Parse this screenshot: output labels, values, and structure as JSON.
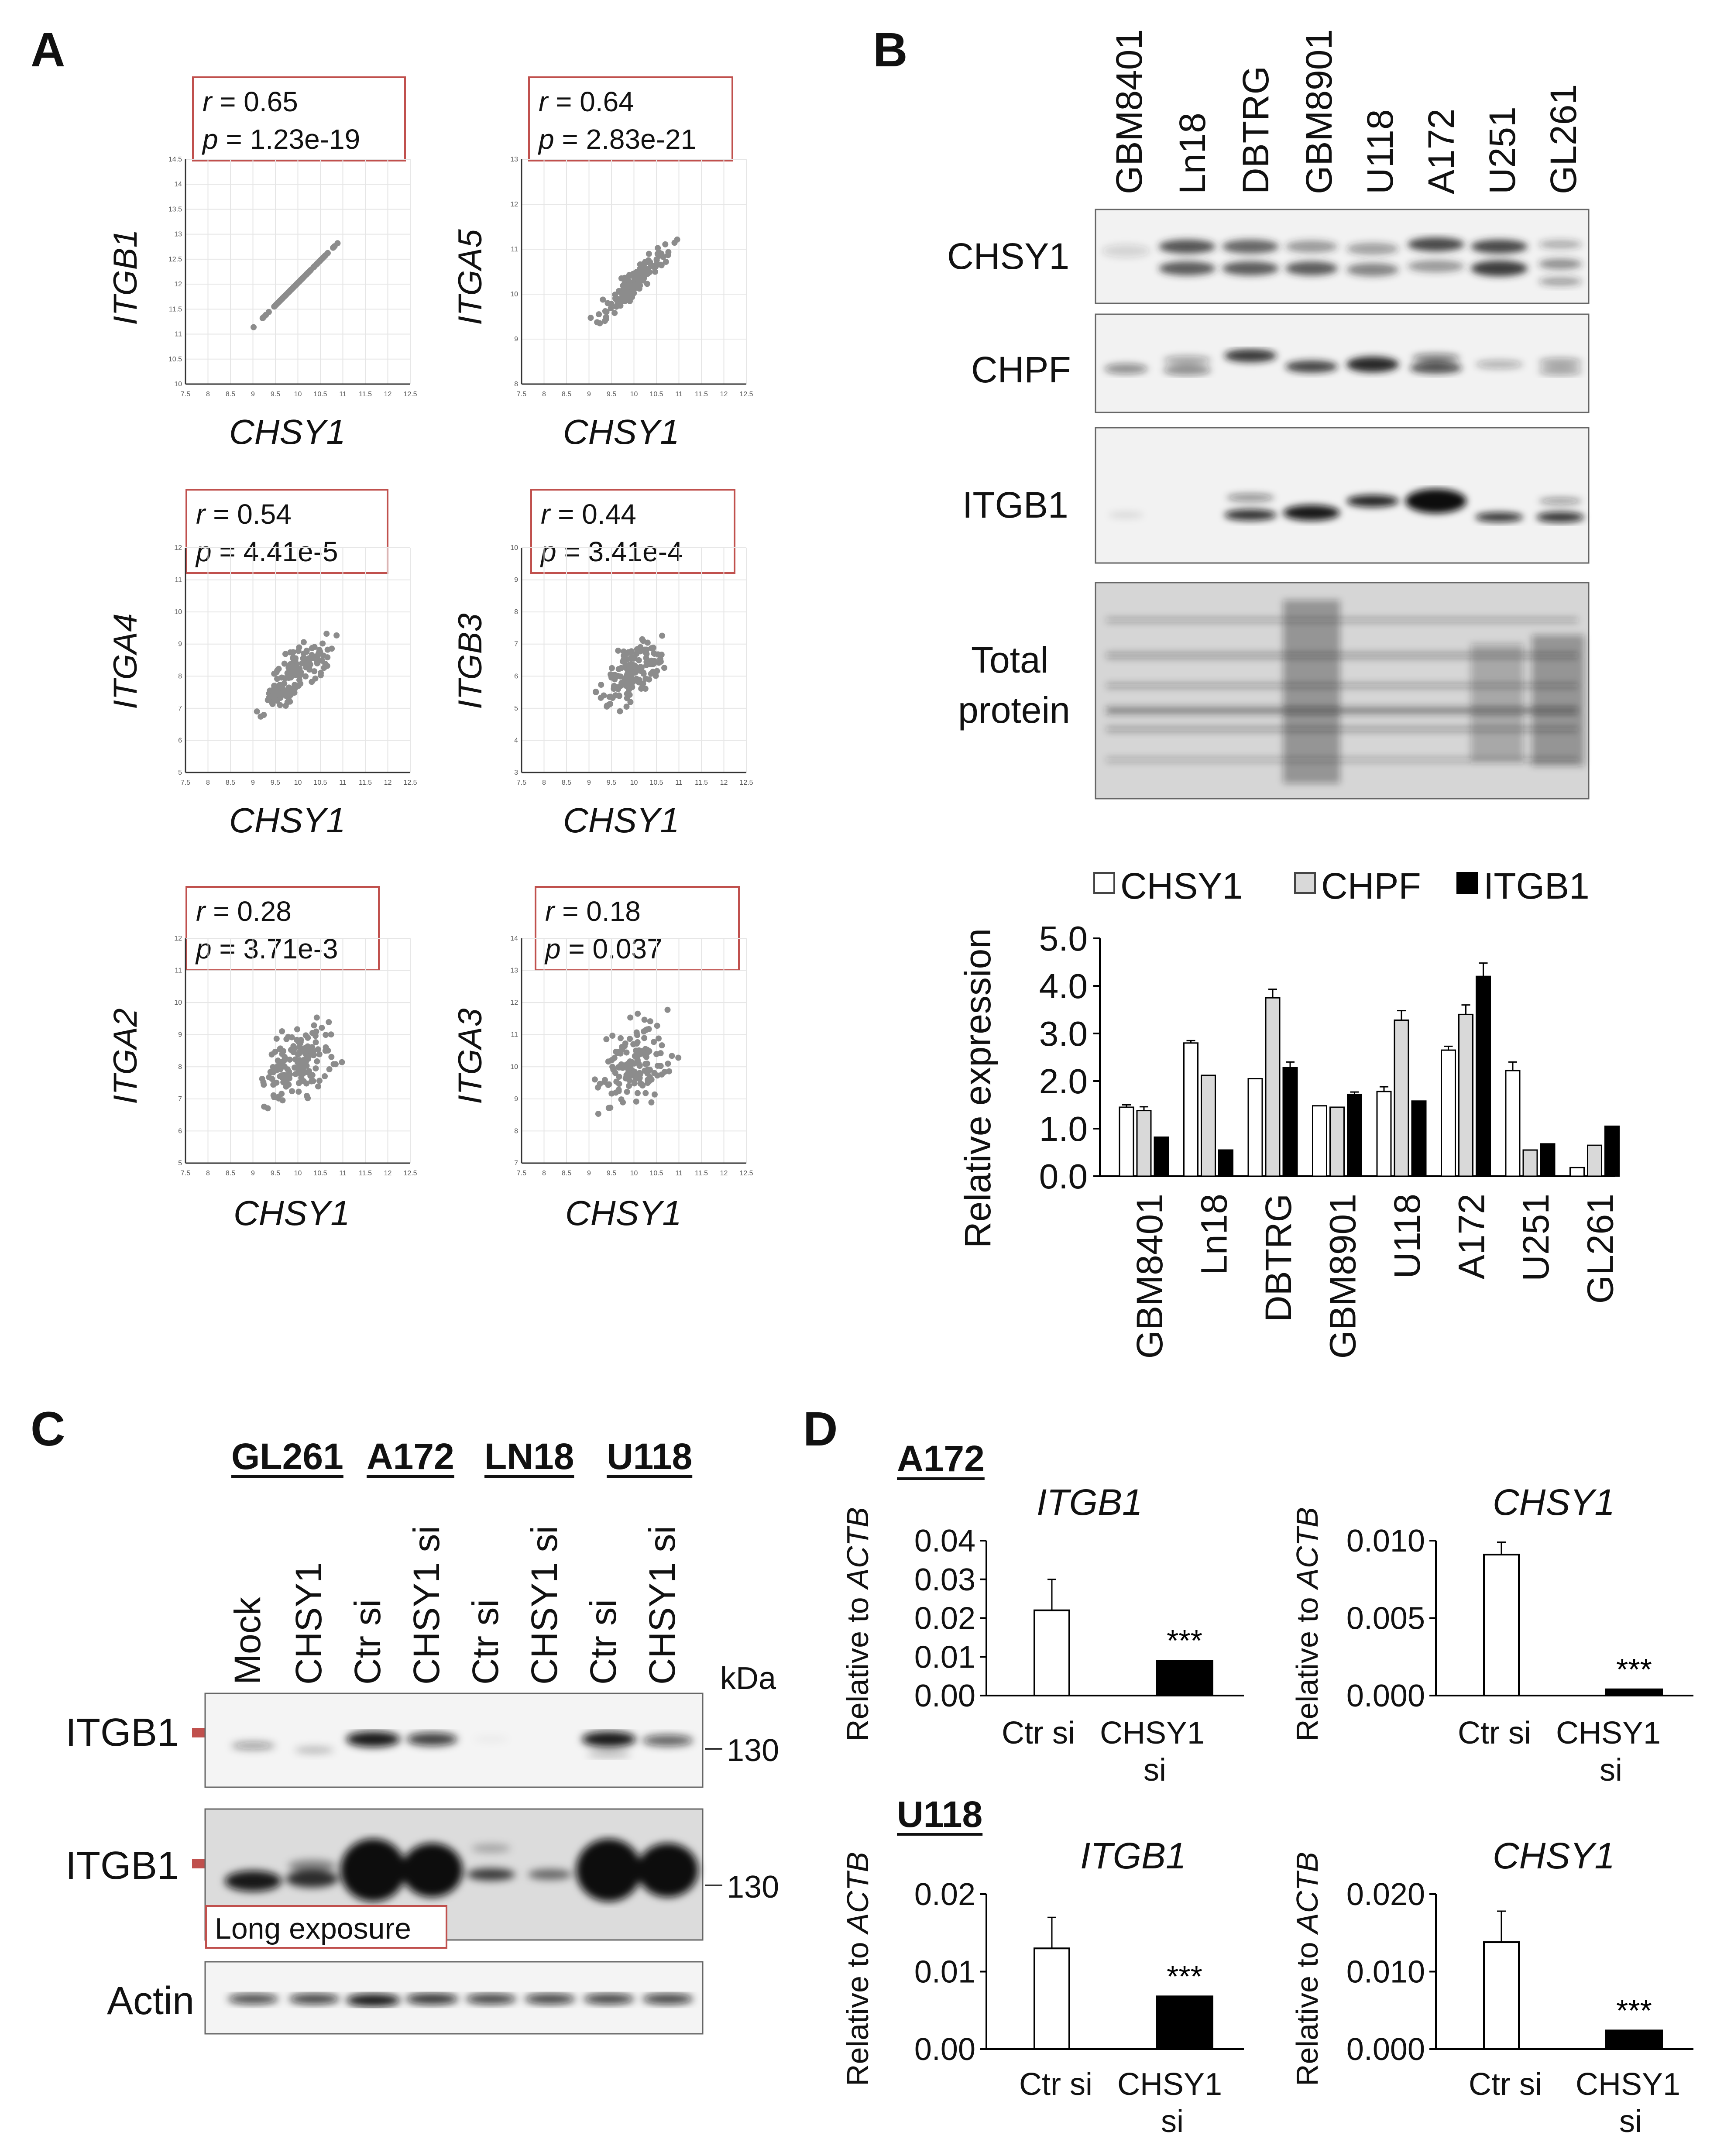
{
  "panel_labels": {
    "a": "A",
    "b": "B",
    "c": "C",
    "d": "D"
  },
  "panel_a": {
    "x_label": "CHSY1",
    "plots": [
      {
        "gene": "ITGB1",
        "r_prefix": "r",
        "r_text": " = 0.65",
        "p_prefix": "p",
        "p_text": " = 1.23e-19",
        "yticks": [
          "14.5",
          "14",
          "13.5",
          "13",
          "12.5",
          "12",
          "11.5",
          "11",
          "10.5",
          "10"
        ],
        "ylim": [
          10,
          14.5
        ],
        "slope": 1.0
      },
      {
        "gene": "ITGA5",
        "r_prefix": "r",
        "r_text": " = 0.64",
        "p_prefix": "p",
        "p_text": " = 2.83e-21",
        "yticks": [
          "13",
          "12",
          "11",
          "10",
          "9",
          "8"
        ],
        "ylim": [
          8,
          13
        ],
        "slope": 0.95
      },
      {
        "gene": "ITGA4",
        "r_prefix": "r",
        "r_text": " = 0.54",
        "p_prefix": "p",
        "p_text": " = 4.41e-5",
        "yticks": [
          "12",
          "11",
          "10",
          "9",
          "8",
          "7",
          "6",
          "5"
        ],
        "ylim": [
          5,
          12
        ],
        "slope": 0.8
      },
      {
        "gene": "ITGB3",
        "r_prefix": "r",
        "r_text": " = 0.44",
        "p_prefix": "p",
        "p_text": " = 3.41e-4",
        "yticks": [
          "10",
          "9",
          "8",
          "7",
          "6",
          "5",
          "4",
          "3"
        ],
        "ylim": [
          3,
          10
        ],
        "slope": 0.7
      },
      {
        "gene": "ITGA2",
        "r_prefix": "r",
        "r_text": " = 0.28",
        "p_prefix": "p",
        "p_text": " = 3.71e-3",
        "yticks": [
          "12",
          "11",
          "10",
          "9",
          "8",
          "7",
          "6",
          "5"
        ],
        "ylim": [
          5,
          12
        ],
        "slope": 0.45
      },
      {
        "gene": "ITGA3",
        "r_prefix": "r",
        "r_text": " = 0.18",
        "p_prefix": "p",
        "p_text": " = 0.037",
        "yticks": [
          "14",
          "13",
          "12",
          "11",
          "10",
          "9",
          "8",
          "7"
        ],
        "ylim": [
          7,
          14
        ],
        "slope": 0.3
      }
    ],
    "xticks": [
      "7.5",
      "8",
      "8.5",
      "9",
      "9.5",
      "10",
      "10.5",
      "11",
      "11.5",
      "12",
      "12.5"
    ],
    "xlim": [
      7.5,
      12.5
    ]
  },
  "panel_b": {
    "cell_lines": [
      "GBM8401",
      "Ln18",
      "DBTRG",
      "GBM8901",
      "U118",
      "A172",
      "U251",
      "GL261"
    ],
    "blot_labels": {
      "chsy1": "CHSY1",
      "chpf": "CHPF",
      "itgb1": "ITGB1",
      "total_line1": "Total",
      "total_line2": "protein"
    }
  },
  "chart_data": {
    "type": "bar",
    "categories": [
      "GBM8401",
      "Ln18",
      "DBTRG",
      "GBM8901",
      "U118",
      "A172",
      "U251",
      "GL261"
    ],
    "series": [
      {
        "name": "CHSY1",
        "color": "#ffffff",
        "values": [
          1.45,
          2.8,
          2.05,
          1.48,
          1.78,
          2.65,
          2.22,
          0.18
        ],
        "errors": [
          0.05,
          0.05,
          0.0,
          0.0,
          0.1,
          0.08,
          0.18,
          0.0
        ]
      },
      {
        "name": "CHPF",
        "color": "#d9d9d9",
        "values": [
          1.38,
          2.12,
          3.75,
          1.45,
          3.28,
          3.4,
          0.55,
          0.65
        ],
        "errors": [
          0.08,
          0.0,
          0.18,
          0.0,
          0.2,
          0.2,
          0.0,
          0.0
        ]
      },
      {
        "name": "ITGB1",
        "color": "#000000",
        "values": [
          0.82,
          0.55,
          2.28,
          1.72,
          1.58,
          4.2,
          0.68,
          1.05
        ],
        "errors": [
          0.0,
          0.0,
          0.12,
          0.05,
          0.0,
          0.28,
          0.0,
          0.0
        ]
      }
    ],
    "ylabel": "Relative expression",
    "yticks": [
      "0.0",
      "1.0",
      "2.0",
      "3.0",
      "4.0",
      "5.0"
    ],
    "ylim": [
      0,
      5
    ]
  },
  "panel_c": {
    "groups": [
      {
        "name": "GL261"
      },
      {
        "name": "A172"
      },
      {
        "name": "LN18"
      },
      {
        "name": "U118"
      }
    ],
    "lanes": [
      "Mock",
      "CHSY1",
      "Ctr si",
      "CHSY1 si",
      "Ctr si",
      "CHSY1 si",
      "Ctr si",
      "CHSY1 si"
    ],
    "kda_label": "kDa",
    "row1_label": "ITGB1",
    "row2_label": "ITGB1",
    "row3_label": "Actin",
    "mw_marker": "130",
    "mw_marker2": "130",
    "long_exposure": "Long exposure"
  },
  "panel_d": {
    "y_label_prefix": "Relative to ",
    "y_label_gene": "ACTB",
    "cell_a172": "A172",
    "cell_u118": "U118",
    "plots": [
      {
        "title": "ITGB1",
        "yticks": [
          "0.04",
          "0.03",
          "0.02",
          "0.01",
          "0.00"
        ],
        "ylim": [
          0,
          0.04
        ],
        "ctr": 0.022,
        "ctr_err": 0.008,
        "si": 0.009,
        "sig": "***"
      },
      {
        "title": "CHSY1",
        "yticks": [
          "0.010",
          "0.005",
          "0.000"
        ],
        "ylim": [
          0,
          0.01
        ],
        "ctr": 0.0091,
        "ctr_err": 0.0008,
        "si": 0.0004,
        "sig": "***"
      },
      {
        "title": "ITGB1",
        "yticks": [
          "0.02",
          "0.01",
          "0.00"
        ],
        "ylim": [
          0,
          0.02
        ],
        "ctr": 0.013,
        "ctr_err": 0.004,
        "si": 0.0068,
        "sig": "***"
      },
      {
        "title": "CHSY1",
        "yticks": [
          "0.020",
          "0.010",
          "0.000"
        ],
        "ylim": [
          0,
          0.02
        ],
        "ctr": 0.0138,
        "ctr_err": 0.004,
        "si": 0.0024,
        "sig": "***"
      }
    ],
    "x_ctr": "Ctr si",
    "x_si_line1": "CHSY1",
    "x_si_line2": "si"
  }
}
